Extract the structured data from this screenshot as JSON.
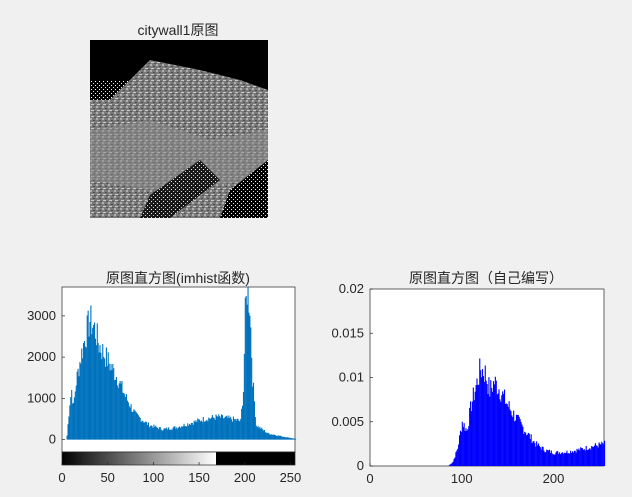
{
  "figure": {
    "background": "#f0f0f0",
    "image_title": "citywall1原图",
    "hist1_title": "原图直方图(imhist函数)",
    "hist2_title": "原图直方图（自己编写）"
  },
  "chart_data": [
    {
      "type": "bar",
      "title": "原图直方图(imhist函数)",
      "color": "#0072bd",
      "xlim": [
        0,
        255
      ],
      "ylim": [
        -300,
        3700
      ],
      "xticks": [
        "0",
        "50",
        "100",
        "150",
        "200",
        "250"
      ],
      "yticks": [
        "0",
        "1000",
        "2000",
        "3000"
      ],
      "colorbar": "grayscale gradient 0-255",
      "peaks": [
        {
          "x": 5,
          "y": 100
        },
        {
          "x": 8,
          "y": 900
        },
        {
          "x": 10,
          "y": 1200
        },
        {
          "x": 12,
          "y": 800
        },
        {
          "x": 15,
          "y": 1400
        },
        {
          "x": 20,
          "y": 2000
        },
        {
          "x": 25,
          "y": 2500
        },
        {
          "x": 30,
          "y": 2900
        },
        {
          "x": 35,
          "y": 2700
        },
        {
          "x": 40,
          "y": 2300
        },
        {
          "x": 45,
          "y": 2100
        },
        {
          "x": 50,
          "y": 1900
        },
        {
          "x": 60,
          "y": 1500
        },
        {
          "x": 70,
          "y": 1000
        },
        {
          "x": 80,
          "y": 600
        },
        {
          "x": 95,
          "y": 350
        },
        {
          "x": 110,
          "y": 250
        },
        {
          "x": 125,
          "y": 300
        },
        {
          "x": 140,
          "y": 400
        },
        {
          "x": 155,
          "y": 500
        },
        {
          "x": 170,
          "y": 550
        },
        {
          "x": 185,
          "y": 500
        },
        {
          "x": 195,
          "y": 450
        },
        {
          "x": 198,
          "y": 1200
        },
        {
          "x": 200,
          "y": 3000
        },
        {
          "x": 202,
          "y": 3650
        },
        {
          "x": 205,
          "y": 3300
        },
        {
          "x": 208,
          "y": 1500
        },
        {
          "x": 212,
          "y": 350
        },
        {
          "x": 225,
          "y": 150
        },
        {
          "x": 240,
          "y": 80
        },
        {
          "x": 255,
          "y": 20
        }
      ]
    },
    {
      "type": "bar",
      "title": "原图直方图（自己编写）",
      "color": "#0000ff",
      "xlim": [
        0,
        255
      ],
      "ylim": [
        0,
        0.02
      ],
      "xticks": [
        "0",
        "100",
        "200"
      ],
      "yticks": [
        "0",
        "0.005",
        "0.01",
        "0.015",
        "0.02"
      ],
      "peaks": [
        {
          "x": 85,
          "y": 0
        },
        {
          "x": 90,
          "y": 0.0005
        },
        {
          "x": 95,
          "y": 0.002
        },
        {
          "x": 100,
          "y": 0.005
        },
        {
          "x": 105,
          "y": 0.004
        },
        {
          "x": 110,
          "y": 0.007
        },
        {
          "x": 115,
          "y": 0.009
        },
        {
          "x": 120,
          "y": 0.011
        },
        {
          "x": 125,
          "y": 0.0105
        },
        {
          "x": 130,
          "y": 0.0085
        },
        {
          "x": 135,
          "y": 0.0095
        },
        {
          "x": 140,
          "y": 0.0088
        },
        {
          "x": 145,
          "y": 0.0078
        },
        {
          "x": 150,
          "y": 0.0068
        },
        {
          "x": 160,
          "y": 0.0052
        },
        {
          "x": 170,
          "y": 0.0038
        },
        {
          "x": 180,
          "y": 0.0025
        },
        {
          "x": 190,
          "y": 0.0018
        },
        {
          "x": 200,
          "y": 0.0015
        },
        {
          "x": 215,
          "y": 0.0016
        },
        {
          "x": 230,
          "y": 0.0019
        },
        {
          "x": 245,
          "y": 0.0023
        },
        {
          "x": 255,
          "y": 0.0025
        }
      ]
    }
  ]
}
